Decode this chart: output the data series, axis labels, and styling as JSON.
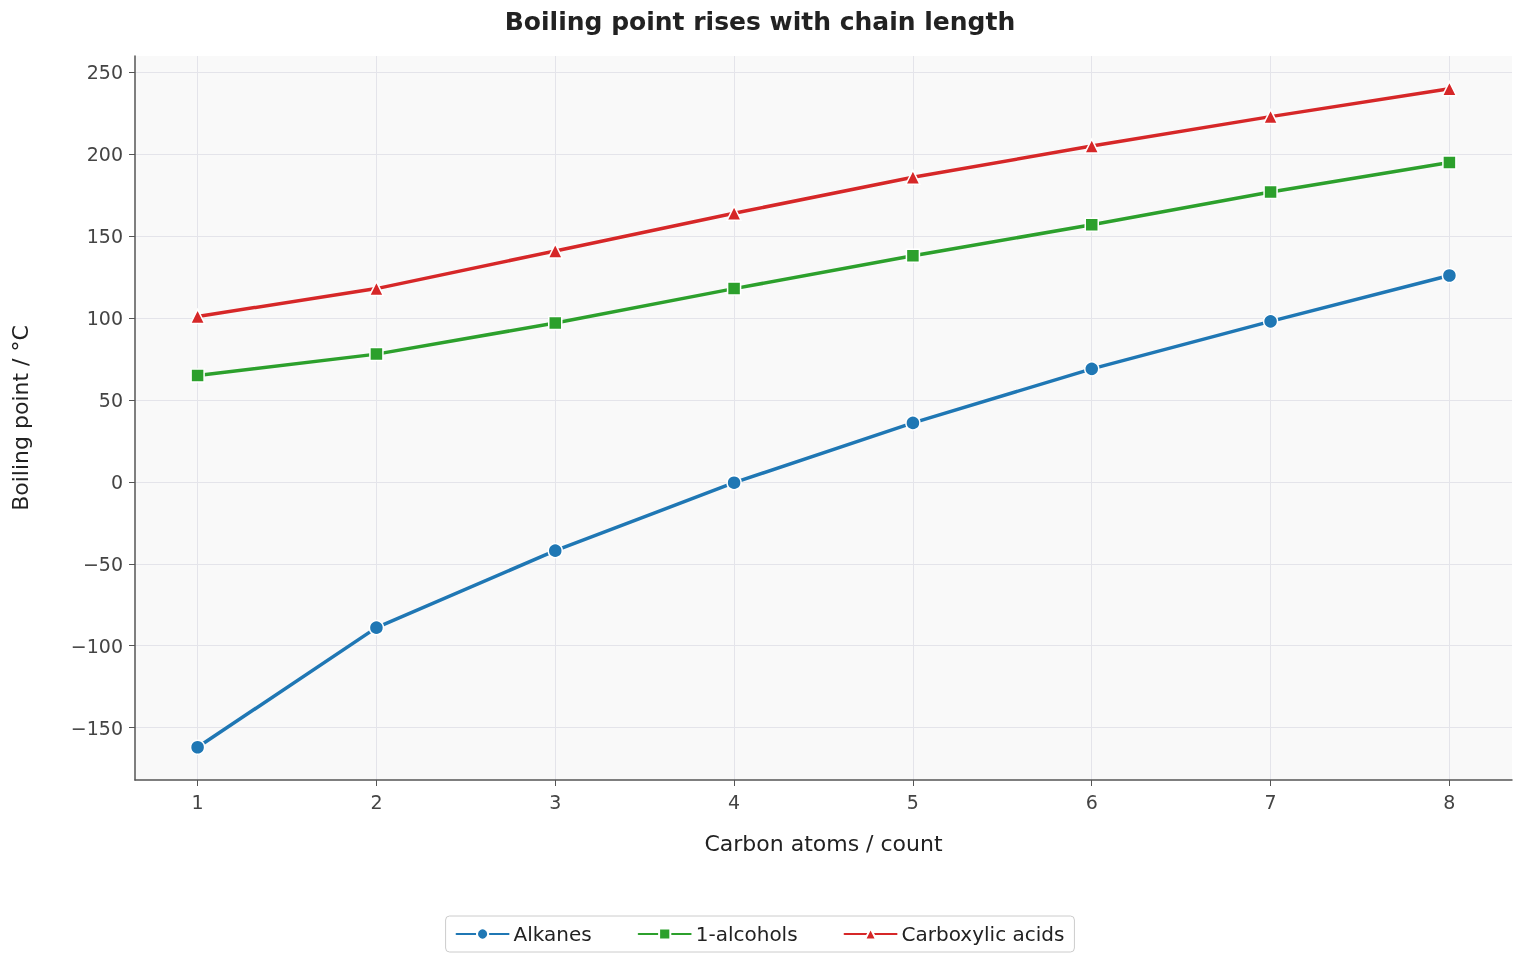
{
  "chart_data": {
    "type": "line",
    "title": "Boiling point rises with chain length",
    "xlabel": "Carbon atoms / count",
    "ylabel": "Boiling point / °C",
    "x": [
      1,
      2,
      3,
      4,
      5,
      6,
      7,
      8
    ],
    "series": [
      {
        "name": "Alkanes",
        "color": "#1f77b4",
        "marker": "circle",
        "values": [
          -162,
          -89,
          -42,
          -0.5,
          36,
          69,
          98,
          126
        ]
      },
      {
        "name": "1-alcohols",
        "color": "#2ca02c",
        "marker": "square",
        "values": [
          65,
          78,
          97,
          118,
          138,
          157,
          177,
          195
        ]
      },
      {
        "name": "Carboxylic acids",
        "color": "#d62728",
        "marker": "triangle",
        "values": [
          101,
          118,
          141,
          164,
          186,
          205,
          223,
          240
        ]
      }
    ],
    "xlim": [
      0.65,
      8.35
    ],
    "xticks": [
      1,
      2,
      3,
      4,
      5,
      6,
      7,
      8
    ],
    "ylim": [
      -182,
      260
    ],
    "yticks": [
      {
        "value": -150,
        "label": "−150"
      },
      {
        "value": -100,
        "label": "−100"
      },
      {
        "value": -50,
        "label": "−50"
      },
      0,
      50,
      100,
      150,
      200,
      250
    ],
    "grid": true,
    "legend": "bottom",
    "line_style": "solid"
  }
}
